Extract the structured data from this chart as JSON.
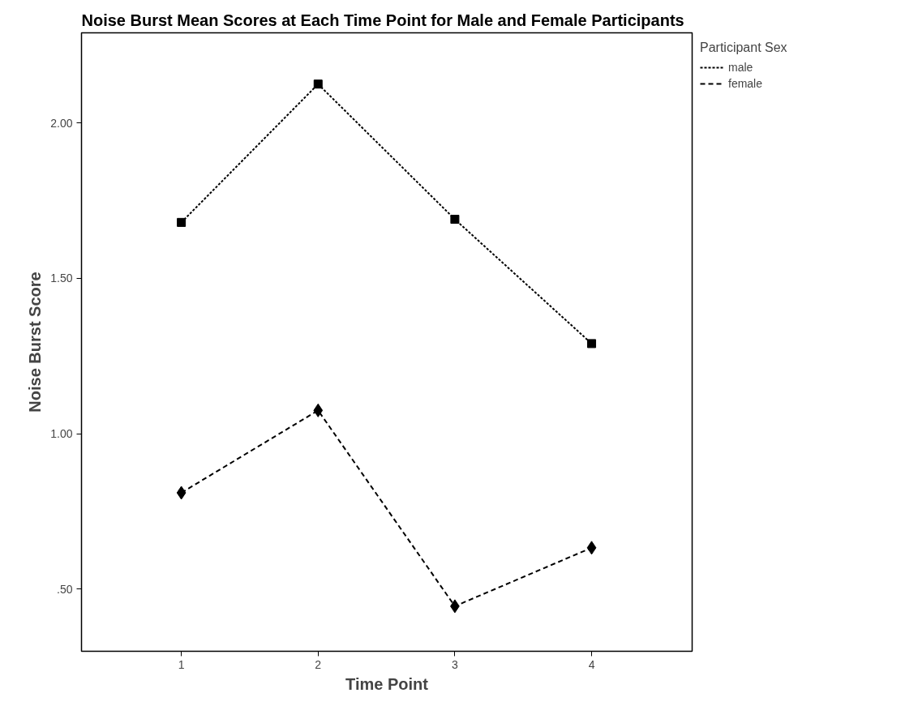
{
  "chart_data": {
    "type": "line",
    "title": "Noise Burst Mean Scores at Each Time Point for Male and Female Participants",
    "xlabel": "Time Point",
    "ylabel": "Noise Burst Score",
    "legend_title": "Participant Sex",
    "x": [
      1,
      2,
      3,
      4
    ],
    "series": [
      {
        "name": "male",
        "color": "#000000",
        "values": [
          1.68,
          2.125,
          1.69,
          1.29
        ],
        "marker": "square",
        "line_style": "dotted"
      },
      {
        "name": "female",
        "color": "#000000",
        "values": [
          0.81,
          1.075,
          0.445,
          0.633
        ],
        "marker": "diamond",
        "line_style": "dashed"
      }
    ],
    "xlim": [
      0.27,
      4.735
    ],
    "xticks": [
      1,
      2,
      3,
      4
    ],
    "ylim": [
      0.3,
      2.29
    ],
    "yticks": [
      {
        "value": 0.5,
        "label": ".50"
      },
      {
        "value": 1.0,
        "label": "1.00"
      },
      {
        "value": 1.5,
        "label": "1.50"
      },
      {
        "value": 2.0,
        "label": "2.00"
      }
    ],
    "grid": false,
    "legend": "top right"
  }
}
